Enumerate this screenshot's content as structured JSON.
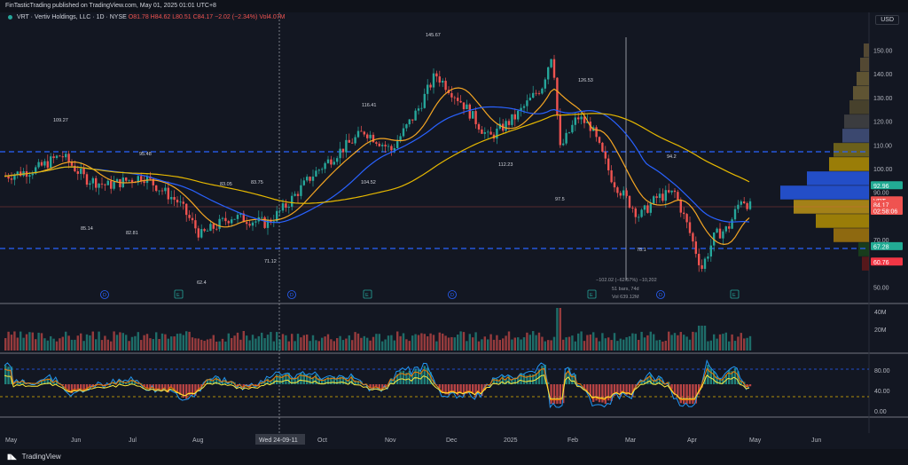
{
  "header": {
    "published_text": "FinTasticTrading published on TradingView.com, May 01, 2025 01:01 UTC+8",
    "currency": "USD"
  },
  "legend": {
    "symbol": "VRT · Vertiv Holdings, LLC · 1D · NYSE",
    "open": "O81.78",
    "high": "H84.62",
    "low": "L80.51",
    "close": "C84.17",
    "change": "−2.02 (−2.34%)",
    "volume": "Vol4.07M"
  },
  "price_axis": {
    "ticks": [
      "150.00",
      "140.00",
      "130.00",
      "120.00",
      "110.00",
      "100.00",
      "90.00",
      "70.00",
      "50.00"
    ],
    "badges": [
      {
        "label": "92.96",
        "color": "#22ab94"
      },
      {
        "label": "VRT",
        "color": "#ef5350"
      },
      {
        "label": "84.17",
        "color": "#ef5350"
      },
      {
        "label": "02:58:06",
        "color": "#ef5350"
      },
      {
        "label": "67.28",
        "color": "#22ab94"
      },
      {
        "label": "60.76",
        "color": "#f23645"
      }
    ]
  },
  "volume_axis": {
    "ticks": [
      "40M",
      "20M"
    ]
  },
  "osc_axis": {
    "ticks": [
      "80.00",
      "40.00",
      "0.00"
    ]
  },
  "time_axis": {
    "labels": [
      "May",
      "Jun",
      "Jul",
      "Aug",
      "Oct",
      "Nov",
      "Dec",
      "2025",
      "Feb",
      "Mar",
      "Apr",
      "May",
      "Jun"
    ],
    "cursor_label": "Wed 24-09-11"
  },
  "annotations": {
    "highs": [
      "109.27",
      "95.48",
      "83.05",
      "83.75",
      "116.41",
      "145.67",
      "126.53",
      "94.2"
    ],
    "lows": [
      "85.14",
      "82.81",
      "62.4",
      "71.12",
      "104.52",
      "112.23",
      "97.5",
      "78.1"
    ],
    "measure": [
      "−102.02 (−62.57%) −10,202",
      "51 bars, 74d",
      "Vol 639.12M"
    ],
    "earnings_markers": [
      "E",
      "E",
      "E",
      "E"
    ],
    "dividend_markers": [
      "D",
      "D",
      "D",
      "D"
    ]
  },
  "colors": {
    "background": "#131722",
    "up": "#26a69a",
    "down": "#ef5350",
    "ma_fast": "#f5a623",
    "ma_mid": "#2962ff",
    "ma_slow": "#e6b800",
    "dashed_level": "#2962ff"
  },
  "footer": {
    "brand": "TradingView"
  }
}
